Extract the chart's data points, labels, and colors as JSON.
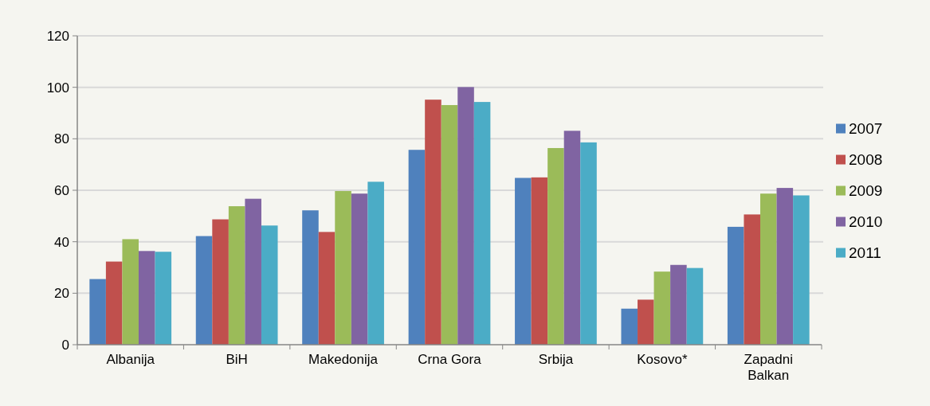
{
  "chart_data": {
    "type": "bar",
    "categories": [
      "Albanija",
      "BiH",
      "Makedonija",
      "Crna Gora",
      "Srbija",
      "Kosovo*",
      "Zapadni Balkan"
    ],
    "series": [
      {
        "name": "2007",
        "color": "#4f81bd",
        "values": [
          25.5,
          42.2,
          52.2,
          75.7,
          64.8,
          14,
          45.8
        ]
      },
      {
        "name": "2008",
        "color": "#c0504d",
        "values": [
          32.3,
          48.7,
          43.8,
          95.2,
          65,
          17.5,
          50.6
        ]
      },
      {
        "name": "2009",
        "color": "#9bbb59",
        "values": [
          41,
          53.8,
          59.7,
          93.1,
          76.4,
          28.4,
          58.7
        ]
      },
      {
        "name": "2010",
        "color": "#8064a2",
        "values": [
          36.4,
          56.7,
          58.7,
          100.1,
          83.1,
          31,
          60.9
        ]
      },
      {
        "name": "2011",
        "color": "#4bacc6",
        "values": [
          36.1,
          46.3,
          63.3,
          94.3,
          78.6,
          29.8,
          58
        ]
      }
    ],
    "ylim": [
      0,
      120
    ],
    "yticks": [
      0,
      20,
      40,
      60,
      80,
      100,
      120
    ],
    "grid": "y",
    "legend": "right"
  }
}
